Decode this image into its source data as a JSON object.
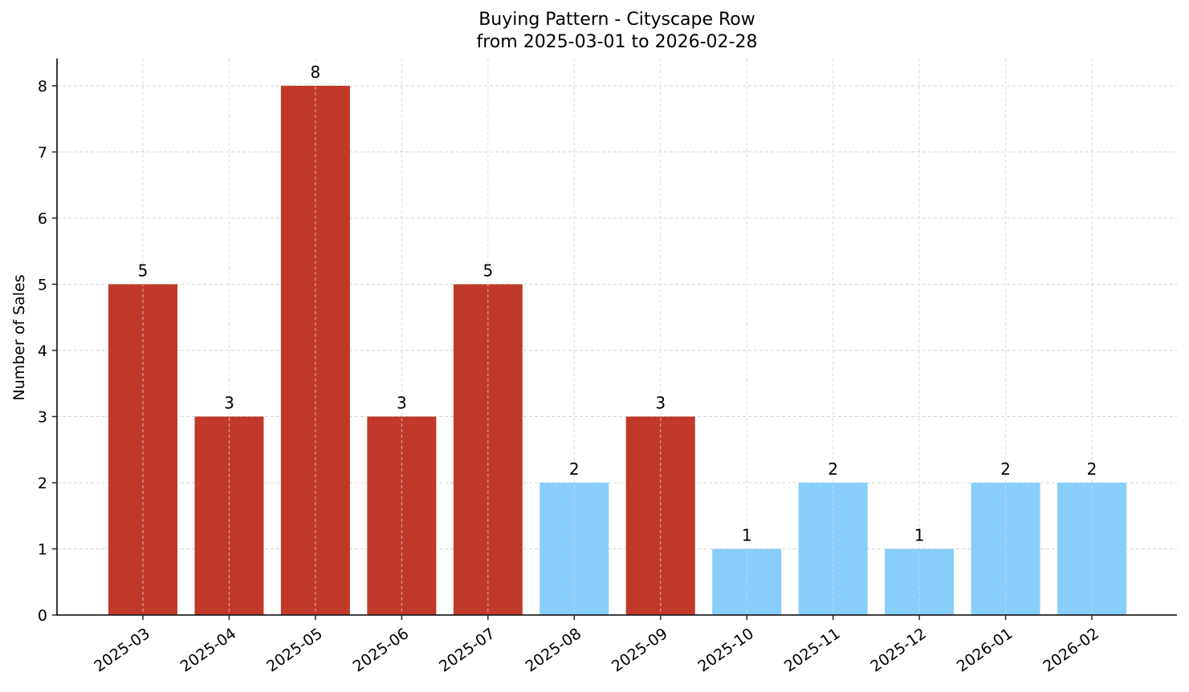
{
  "chart_data": {
    "type": "bar",
    "title": "Buying Pattern - Cityscape Row",
    "subtitle": "from 2025-03-01 to 2026-02-28",
    "xlabel": "",
    "ylabel": "Number of Sales",
    "categories": [
      "2025-03",
      "2025-04",
      "2025-05",
      "2025-06",
      "2025-07",
      "2025-08",
      "2025-09",
      "2025-10",
      "2025-11",
      "2025-12",
      "2026-01",
      "2026-02"
    ],
    "values": [
      5,
      3,
      8,
      3,
      5,
      2,
      3,
      1,
      2,
      1,
      2,
      2
    ],
    "bar_colors": [
      "#c0392b",
      "#c0392b",
      "#c0392b",
      "#c0392b",
      "#c0392b",
      "#87cefa",
      "#c0392b",
      "#87cefa",
      "#87cefa",
      "#87cefa",
      "#87cefa",
      "#87cefa"
    ],
    "data_labels": true,
    "ylim": [
      0,
      8.4
    ],
    "yticks": [
      0,
      1,
      2,
      3,
      4,
      5,
      6,
      7,
      8
    ],
    "grid": true,
    "legend": null,
    "x_tick_rotation": 35
  },
  "colors": {
    "high": "#c0392b",
    "low": "#87cefa",
    "axis": "#222222",
    "grid": "#d6d6d6"
  }
}
